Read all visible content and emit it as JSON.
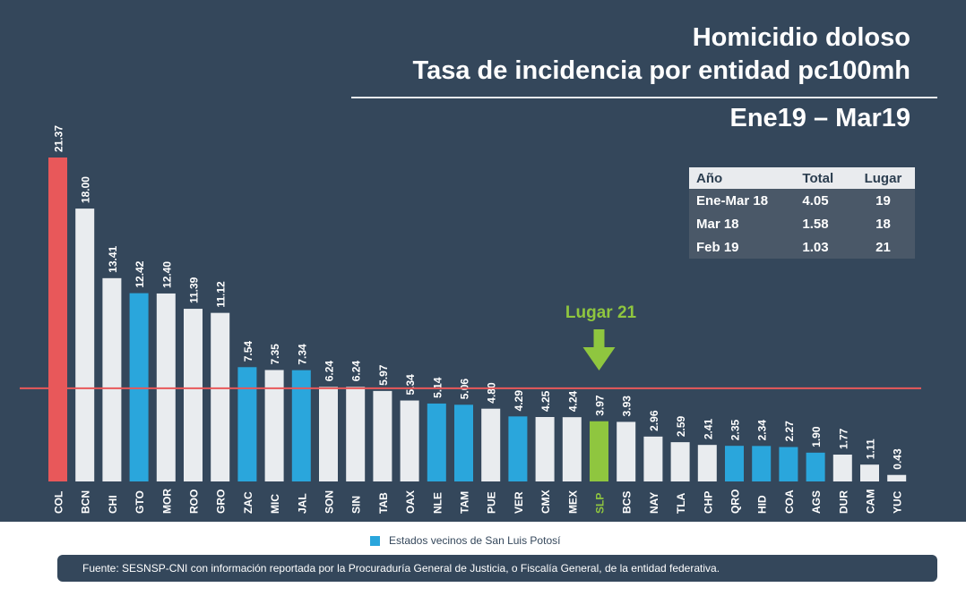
{
  "header": {
    "title_line1": "Homicidio doloso",
    "title_line2": "Tasa de incidencia por entidad pc100mh",
    "period": "Ene19 – Mar19"
  },
  "summary_table": {
    "headers": [
      "Año",
      "Total",
      "Lugar"
    ],
    "rows": [
      [
        "Ene-Mar 18",
        "4.05",
        "19"
      ],
      [
        "Mar 18",
        "1.58",
        "18"
      ],
      [
        "Feb 19",
        "1.03",
        "21"
      ]
    ]
  },
  "callout": {
    "label": "Lugar 21"
  },
  "legend": {
    "label": "Estados vecinos de San Luis Potosí"
  },
  "footer": {
    "source": "Fuente: SESNSP-CNI con información reportada por la Procuraduría General de Justicia, o Fiscalía General, de la entidad federativa."
  },
  "colors": {
    "top": "#e8585a",
    "neighbor": "#2aa6dc",
    "highlight": "#8fc63f",
    "default": "#e9ecef",
    "national_line": "#e8585a"
  },
  "chart_data": {
    "type": "bar",
    "title": "Homicidio doloso",
    "subtitle": "Tasa de incidencia por entidad pc100mh",
    "xlabel": "",
    "ylabel": "",
    "ylim": [
      0,
      21.37
    ],
    "grid": false,
    "categories": [
      "COL",
      "BCN",
      "CHI",
      "GTO",
      "MOR",
      "ROO",
      "GRO",
      "ZAC",
      "MIC",
      "JAL",
      "SON",
      "SIN",
      "TAB",
      "OAX",
      "NLE",
      "TAM",
      "PUE",
      "VER",
      "CMX",
      "MEX",
      "SLP",
      "BCS",
      "NAY",
      "TLA",
      "CHP",
      "QRO",
      "HID",
      "COA",
      "AGS",
      "DUR",
      "CAM",
      "YUC"
    ],
    "labels": [
      "21.37",
      "18.00",
      "13.41",
      "12.42",
      "12.40",
      "11.39",
      "11.12",
      "7.54",
      "7.35",
      "7.34",
      "6.24",
      "6.24",
      "5.97",
      "5.34",
      "5.14",
      "5.06",
      "4.80",
      "4.29",
      "4.25",
      "4.24",
      "3.97",
      "3.93",
      "2.96",
      "2.59",
      "2.41",
      "2.35",
      "2.34",
      "2.27",
      "1.90",
      "1.77",
      "1.11",
      "0.43"
    ],
    "values": [
      21.37,
      18.0,
      13.41,
      12.42,
      12.4,
      11.39,
      11.12,
      7.54,
      7.35,
      7.34,
      6.24,
      6.24,
      5.97,
      5.34,
      5.14,
      5.06,
      4.8,
      4.29,
      4.25,
      4.24,
      3.97,
      3.93,
      2.96,
      2.59,
      2.41,
      2.35,
      2.34,
      2.27,
      1.9,
      1.77,
      1.11,
      0.43
    ],
    "groups": [
      "top",
      "default",
      "default",
      "neighbor",
      "default",
      "default",
      "default",
      "neighbor",
      "default",
      "neighbor",
      "default",
      "default",
      "default",
      "default",
      "neighbor",
      "neighbor",
      "default",
      "neighbor",
      "default",
      "default",
      "highlight",
      "default",
      "default",
      "default",
      "default",
      "neighbor",
      "neighbor",
      "neighbor",
      "neighbor",
      "default",
      "default",
      "default"
    ],
    "reference_line": {
      "value": 6.15
    },
    "highlight_category": "SLP"
  }
}
